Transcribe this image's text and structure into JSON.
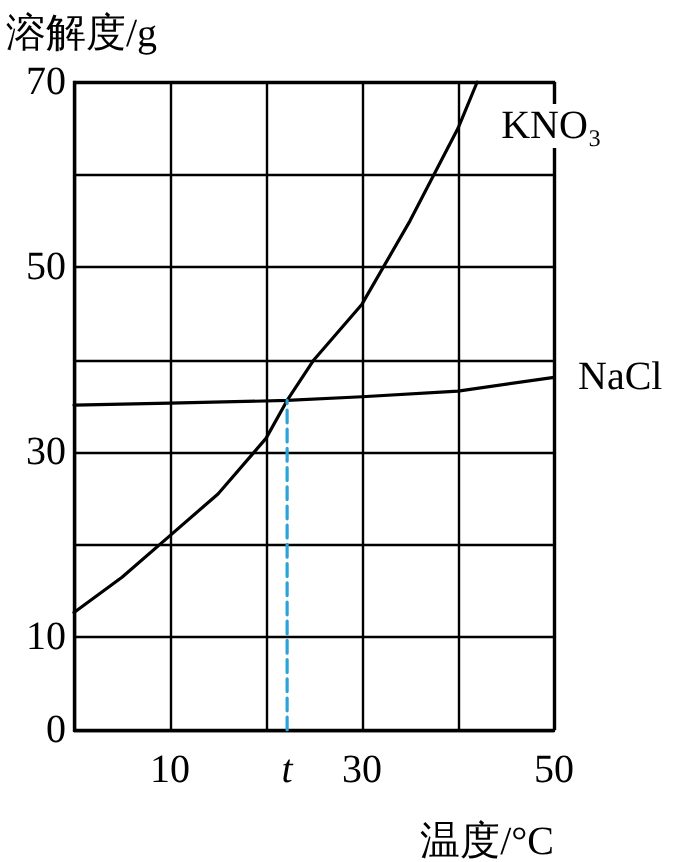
{
  "chart_data": {
    "type": "line",
    "xlabel": "温度/°C",
    "ylabel": "溶解度/g",
    "marker": "none",
    "grid": true,
    "xlim": [
      0,
      50
    ],
    "xticks": [
      {
        "value": 0,
        "label": null
      },
      10,
      {
        "value": 20,
        "label": null
      },
      30,
      {
        "value": 40,
        "label": null
      },
      50
    ],
    "ylim": [
      0,
      70
    ],
    "yticks": [
      0,
      10,
      {
        "value": 20,
        "label": null
      },
      30,
      {
        "value": 40,
        "label": null
      },
      50,
      {
        "value": 60,
        "label": null
      },
      70
    ],
    "series": [
      {
        "name": "KNO₃",
        "color": "#000000",
        "x": [
          0,
          5,
          10,
          15,
          20,
          22.2,
          25,
          30,
          35,
          40,
          42
        ],
        "values": [
          12.7,
          16.5,
          21,
          25.5,
          31.5,
          35.6,
          40,
          46,
          55,
          65,
          70
        ]
      },
      {
        "name": "NaCl",
        "color": "#000000",
        "x": [
          0,
          10,
          22.2,
          30,
          40,
          50
        ],
        "values": [
          35.1,
          35.3,
          35.6,
          36,
          36.6,
          38.1
        ]
      },
      {
        "color": "#29a3d8",
        "line_style": "dashed",
        "x": [
          22.2,
          22.2
        ],
        "values": [
          0,
          35.6
        ]
      }
    ],
    "annotations": [
      {
        "text": "t",
        "x": 22.2,
        "y": 0
      }
    ]
  }
}
